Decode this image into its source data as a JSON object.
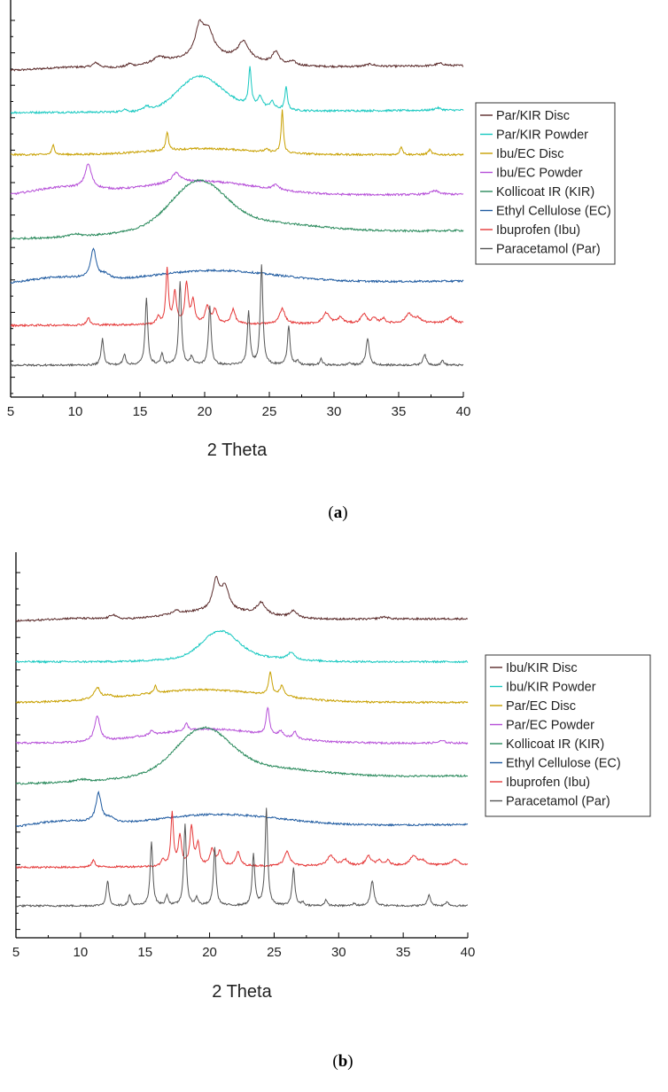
{
  "chart_data": [
    {
      "type": "line",
      "panel": "a",
      "caption": "(a)",
      "caption_letter": "a",
      "xlabel": "2 Theta",
      "ylabel": "",
      "xlim": [
        5,
        40
      ],
      "x_ticks": [
        5,
        10,
        15,
        20,
        25,
        30,
        35,
        40
      ],
      "y_ticks_unlabeled": true,
      "grid": false,
      "legend_position": "right",
      "series": [
        {
          "name": "Par/KIR Disc",
          "color": "#5a2a2a",
          "offset": 7,
          "peaks": [
            [
              19.6,
              1.2,
              0.4
            ],
            [
              20.3,
              1.0,
              0.5
            ],
            [
              23.0,
              0.75,
              0.5
            ],
            [
              25.5,
              0.5,
              0.3
            ],
            [
              16.5,
              0.25,
              0.6
            ],
            [
              11.6,
              0.2,
              0.3
            ],
            [
              14.2,
              0.12,
              0.2
            ],
            [
              26.8,
              0.15,
              0.3
            ],
            [
              32.8,
              0.1,
              0.4
            ],
            [
              38.2,
              0.1,
              0.4
            ]
          ],
          "humps": [
            [
              20.5,
              0.45,
              3.5
            ],
            [
              9.5,
              0.1,
              2.0
            ]
          ],
          "baseline": [
            0.0,
            0.2
          ]
        },
        {
          "name": "Par/KIR Powder",
          "color": "#16c8c0",
          "offset": 6,
          "peaks": [
            [
              23.5,
              1.6,
              0.12
            ],
            [
              26.3,
              0.95,
              0.12
            ],
            [
              24.3,
              0.45,
              0.2
            ],
            [
              25.2,
              0.3,
              0.2
            ],
            [
              15.5,
              0.2,
              0.25
            ],
            [
              13.8,
              0.12,
              0.2
            ],
            [
              38.0,
              0.1,
              0.3
            ]
          ],
          "humps": [
            [
              19.5,
              1.25,
              1.6
            ],
            [
              21.5,
              0.3,
              2.5
            ]
          ],
          "baseline": [
            0.0,
            0.1
          ]
        },
        {
          "name": "Ibu/EC Disc",
          "color": "#c8a000",
          "offset": 5,
          "peaks": [
            [
              26.0,
              1.8,
              0.1
            ],
            [
              17.1,
              0.75,
              0.12
            ],
            [
              8.3,
              0.4,
              0.12
            ],
            [
              35.2,
              0.35,
              0.12
            ],
            [
              37.4,
              0.2,
              0.15
            ],
            [
              24.8,
              0.1,
              0.2
            ]
          ],
          "humps": [
            [
              20.0,
              0.25,
              4.0
            ]
          ],
          "baseline": [
            0.0,
            0.0
          ]
        },
        {
          "name": "Ibu/EC Powder",
          "color": "#b650d8",
          "offset": 4,
          "peaks": [
            [
              11.0,
              1.0,
              0.3
            ],
            [
              17.8,
              0.4,
              0.4
            ],
            [
              25.5,
              0.2,
              0.3
            ],
            [
              37.8,
              0.15,
              0.4
            ]
          ],
          "humps": [
            [
              19.5,
              0.6,
              4.5
            ],
            [
              9.0,
              0.35,
              2.5
            ]
          ],
          "baseline": [
            0.0,
            0.1
          ]
        },
        {
          "name": "Kollicoat IR (KIR)",
          "color": "#2a8a5c",
          "offset": 3,
          "peaks": [
            [
              10.0,
              0.1,
              0.5
            ]
          ],
          "humps": [
            [
              19.5,
              1.75,
              2.0
            ],
            [
              22.0,
              0.6,
              5.5
            ]
          ],
          "baseline": [
            0.0,
            0.35
          ]
        },
        {
          "name": "Ethyl Cellulose (EC)",
          "color": "#1e5aa0",
          "offset": 2,
          "peaks": [
            [
              11.4,
              1.25,
              0.25
            ],
            [
              12.3,
              0.2,
              0.4
            ]
          ],
          "humps": [
            [
              20.5,
              0.55,
              5.0
            ],
            [
              8.5,
              0.3,
              2.5
            ]
          ],
          "baseline": [
            -0.2,
            0.0
          ]
        },
        {
          "name": "Ibuprofen (Ibu)",
          "color": "#e53838",
          "offset": 1,
          "peaks": [
            [
              17.1,
              2.3,
              0.12
            ],
            [
              18.6,
              1.7,
              0.15
            ],
            [
              17.7,
              1.3,
              0.15
            ],
            [
              19.1,
              0.95,
              0.15
            ],
            [
              20.2,
              0.7,
              0.2
            ],
            [
              20.8,
              0.6,
              0.2
            ],
            [
              22.2,
              0.6,
              0.2
            ],
            [
              16.4,
              0.3,
              0.15
            ],
            [
              11.0,
              0.3,
              0.15
            ],
            [
              26.0,
              0.65,
              0.25
            ],
            [
              29.4,
              0.45,
              0.3
            ],
            [
              30.5,
              0.25,
              0.25
            ],
            [
              32.3,
              0.4,
              0.25
            ],
            [
              33.1,
              0.2,
              0.2
            ],
            [
              33.8,
              0.2,
              0.2
            ],
            [
              35.8,
              0.4,
              0.3
            ],
            [
              36.5,
              0.2,
              0.3
            ],
            [
              39.0,
              0.25,
              0.3
            ]
          ],
          "humps": [],
          "baseline": [
            -0.1,
            0.0
          ]
        },
        {
          "name": "Paracetamol (Par)",
          "color": "#555555",
          "offset": 0,
          "peaks": [
            [
              24.4,
              4.2,
              0.12
            ],
            [
              18.1,
              3.5,
              0.12
            ],
            [
              15.5,
              2.8,
              0.12
            ],
            [
              23.4,
              2.2,
              0.12
            ],
            [
              26.5,
              1.65,
              0.12
            ],
            [
              20.4,
              2.5,
              0.12
            ],
            [
              12.1,
              1.1,
              0.12
            ],
            [
              32.6,
              1.1,
              0.15
            ],
            [
              13.8,
              0.45,
              0.12
            ],
            [
              16.7,
              0.45,
              0.12
            ],
            [
              19.0,
              0.35,
              0.12
            ],
            [
              37.0,
              0.45,
              0.15
            ],
            [
              29.0,
              0.25,
              0.12
            ],
            [
              38.4,
              0.2,
              0.12
            ],
            [
              27.2,
              0.15,
              0.12
            ],
            [
              31.2,
              0.1,
              0.12
            ]
          ],
          "humps": [],
          "baseline": [
            0.0,
            0.0
          ]
        }
      ]
    },
    {
      "type": "line",
      "panel": "b",
      "caption": "(b)",
      "caption_letter": "b",
      "xlabel": "2 Theta",
      "ylabel": "",
      "xlim": [
        5,
        40
      ],
      "x_ticks": [
        5,
        10,
        15,
        20,
        25,
        30,
        35,
        40
      ],
      "y_ticks_unlabeled": true,
      "grid": false,
      "legend_position": "right",
      "series": [
        {
          "name": "Ibu/KIR Disc",
          "color": "#5a2a2a",
          "offset": 7,
          "peaks": [
            [
              20.5,
              1.3,
              0.3
            ],
            [
              21.2,
              1.0,
              0.35
            ],
            [
              24.0,
              0.5,
              0.4
            ],
            [
              26.5,
              0.3,
              0.3
            ],
            [
              12.5,
              0.2,
              0.3
            ],
            [
              17.4,
              0.15,
              0.3
            ],
            [
              33.5,
              0.1,
              0.4
            ]
          ],
          "humps": [
            [
              20.5,
              0.4,
              3.5
            ],
            [
              9.5,
              0.1,
              2.0
            ]
          ],
          "baseline": [
            0.0,
            0.1
          ]
        },
        {
          "name": "Ibu/KIR Powder",
          "color": "#16c8c0",
          "offset": 6,
          "peaks": [
            [
              26.3,
              0.3,
              0.3
            ]
          ],
          "humps": [
            [
              20.8,
              1.05,
              1.3
            ],
            [
              21.5,
              0.3,
              3.5
            ]
          ],
          "baseline": [
            0.0,
            0.0
          ]
        },
        {
          "name": "Par/EC Disc",
          "color": "#c8a000",
          "offset": 5,
          "peaks": [
            [
              24.7,
              1.0,
              0.15
            ],
            [
              25.6,
              0.45,
              0.2
            ],
            [
              11.3,
              0.5,
              0.3
            ],
            [
              15.8,
              0.3,
              0.12
            ],
            [
              12.2,
              0.1,
              0.3
            ]
          ],
          "humps": [
            [
              19.5,
              0.55,
              5.0
            ]
          ],
          "baseline": [
            0.0,
            0.0
          ]
        },
        {
          "name": "Par/EC Powder",
          "color": "#b650d8",
          "offset": 4,
          "peaks": [
            [
              11.3,
              1.1,
              0.25
            ],
            [
              24.5,
              1.2,
              0.15
            ],
            [
              18.2,
              0.3,
              0.15
            ],
            [
              15.5,
              0.2,
              0.15
            ],
            [
              25.5,
              0.25,
              0.2
            ],
            [
              26.6,
              0.3,
              0.15
            ],
            [
              38.0,
              0.1,
              0.3
            ]
          ],
          "humps": [
            [
              20.0,
              0.6,
              4.5
            ]
          ],
          "baseline": [
            0.0,
            0.0
          ]
        },
        {
          "name": "Kollicoat IR (KIR)",
          "color": "#2a8a5c",
          "offset": 3,
          "peaks": [
            [
              10.0,
              0.1,
              0.5
            ]
          ],
          "humps": [
            [
              19.5,
              1.75,
              2.0
            ],
            [
              22.0,
              0.6,
              5.5
            ]
          ],
          "baseline": [
            0.0,
            0.35
          ]
        },
        {
          "name": "Ethyl Cellulose (EC)",
          "color": "#1e5aa0",
          "offset": 2,
          "peaks": [
            [
              11.4,
              1.25,
              0.25
            ],
            [
              12.3,
              0.2,
              0.4
            ]
          ],
          "humps": [
            [
              20.5,
              0.55,
              5.0
            ],
            [
              8.5,
              0.3,
              2.5
            ]
          ],
          "baseline": [
            -0.2,
            0.0
          ]
        },
        {
          "name": "Ibuprofen (Ibu)",
          "color": "#e53838",
          "offset": 1,
          "peaks": [
            [
              17.1,
              2.3,
              0.12
            ],
            [
              18.6,
              1.7,
              0.15
            ],
            [
              17.7,
              1.3,
              0.15
            ],
            [
              19.1,
              0.95,
              0.15
            ],
            [
              20.2,
              0.7,
              0.2
            ],
            [
              20.8,
              0.6,
              0.2
            ],
            [
              22.2,
              0.6,
              0.2
            ],
            [
              16.4,
              0.3,
              0.15
            ],
            [
              11.0,
              0.3,
              0.15
            ],
            [
              26.0,
              0.65,
              0.25
            ],
            [
              29.4,
              0.45,
              0.3
            ],
            [
              30.5,
              0.25,
              0.25
            ],
            [
              32.3,
              0.4,
              0.25
            ],
            [
              33.1,
              0.2,
              0.2
            ],
            [
              33.8,
              0.2,
              0.2
            ],
            [
              35.8,
              0.4,
              0.3
            ],
            [
              36.5,
              0.2,
              0.3
            ],
            [
              39.0,
              0.25,
              0.3
            ]
          ],
          "humps": [],
          "baseline": [
            -0.1,
            0.0
          ]
        },
        {
          "name": "Paracetamol (Par)",
          "color": "#555555",
          "offset": 0,
          "peaks": [
            [
              24.4,
              4.2,
              0.12
            ],
            [
              18.1,
              3.5,
              0.12
            ],
            [
              15.5,
              2.8,
              0.12
            ],
            [
              23.4,
              2.2,
              0.12
            ],
            [
              26.5,
              1.65,
              0.12
            ],
            [
              20.4,
              2.5,
              0.12
            ],
            [
              12.1,
              1.1,
              0.12
            ],
            [
              32.6,
              1.1,
              0.15
            ],
            [
              13.8,
              0.45,
              0.12
            ],
            [
              16.7,
              0.45,
              0.12
            ],
            [
              19.0,
              0.35,
              0.12
            ],
            [
              37.0,
              0.45,
              0.15
            ],
            [
              29.0,
              0.25,
              0.12
            ],
            [
              38.4,
              0.2,
              0.12
            ],
            [
              27.2,
              0.15,
              0.12
            ],
            [
              31.2,
              0.1,
              0.12
            ]
          ],
          "humps": [],
          "baseline": [
            0.0,
            0.0
          ]
        }
      ]
    }
  ]
}
